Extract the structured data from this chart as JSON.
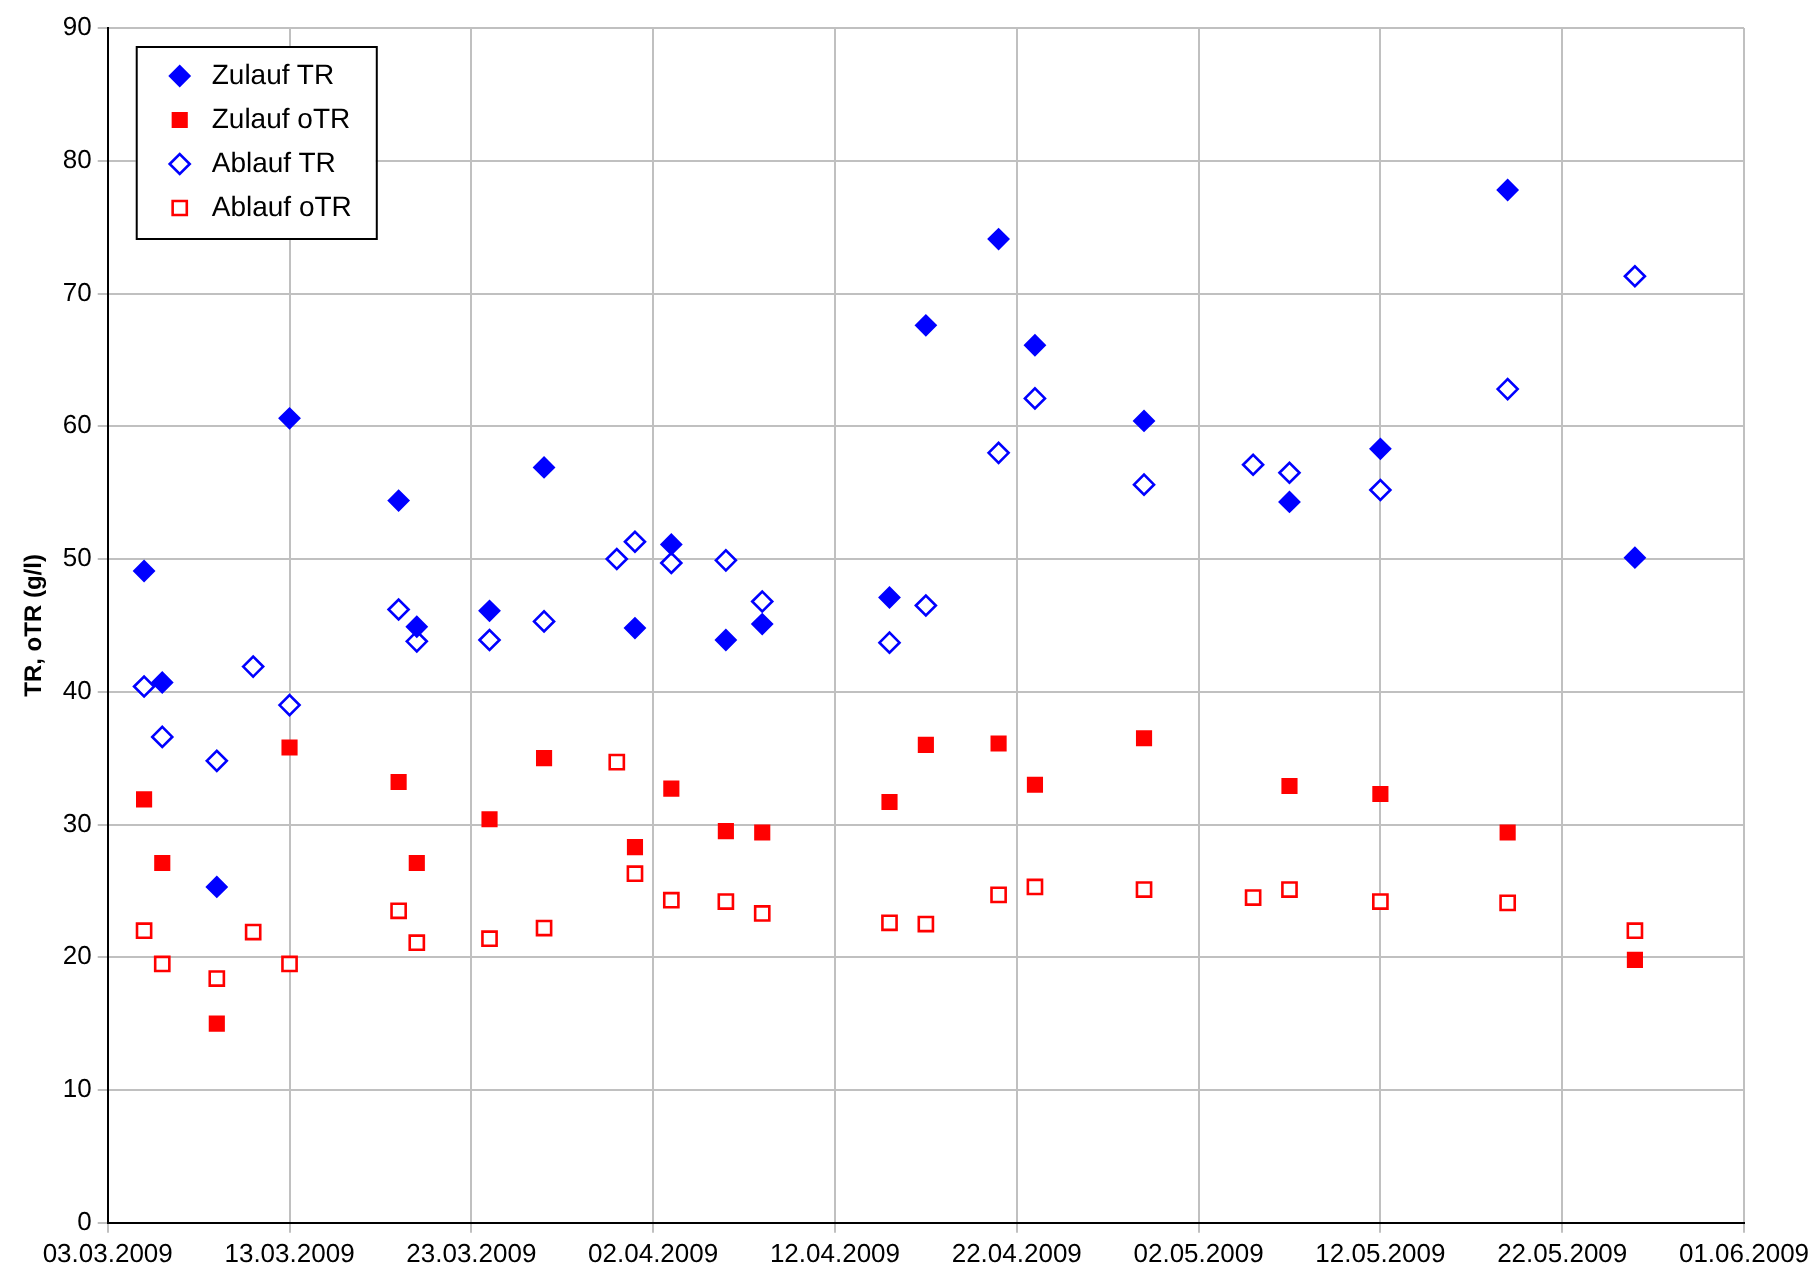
{
  "chart_data": {
    "type": "scatter",
    "ylabel": "TR, oTR (g/l)",
    "xlim": [
      "2009-03-03",
      "2009-06-01"
    ],
    "xticks": [
      {
        "value": "2009-03-03",
        "label": "03.03.2009"
      },
      {
        "value": "2009-03-13",
        "label": "13.03.2009"
      },
      {
        "value": "2009-03-23",
        "label": "23.03.2009"
      },
      {
        "value": "2009-04-02",
        "label": "02.04.2009"
      },
      {
        "value": "2009-04-12",
        "label": "12.04.2009"
      },
      {
        "value": "2009-04-22",
        "label": "22.04.2009"
      },
      {
        "value": "2009-05-02",
        "label": "02.05.2009"
      },
      {
        "value": "2009-05-12",
        "label": "12.05.2009"
      },
      {
        "value": "2009-05-22",
        "label": "22.05.2009"
      },
      {
        "value": "2009-06-01",
        "label": "01.06.2009"
      }
    ],
    "ylim": [
      0,
      90
    ],
    "yticks": [
      0,
      10,
      20,
      30,
      40,
      50,
      60,
      70,
      80,
      90
    ],
    "grid": true,
    "legend": "top left",
    "series": [
      {
        "name": "Zulauf TR",
        "color": "#0000ff",
        "marker": "diamond",
        "x": [
          "2009-03-05",
          "2009-03-06",
          "2009-03-09",
          "2009-03-13",
          "2009-03-19",
          "2009-03-20",
          "2009-03-24",
          "2009-03-27",
          "2009-04-01",
          "2009-04-03",
          "2009-04-06",
          "2009-04-08",
          "2009-04-15",
          "2009-04-17",
          "2009-04-21",
          "2009-04-23",
          "2009-04-29",
          "2009-05-07",
          "2009-05-12",
          "2009-05-19",
          "2009-05-26"
        ],
        "values": [
          49.1,
          40.7,
          25.3,
          60.6,
          54.4,
          44.9,
          46.1,
          56.9,
          44.8,
          51.1,
          43.9,
          45.1,
          47.1,
          67.6,
          74.1,
          66.1,
          60.4,
          54.3,
          58.3,
          77.8,
          50.1
        ]
      },
      {
        "name": "Zulauf oTR",
        "color": "#ff0000",
        "marker": "square",
        "x": [
          "2009-03-05",
          "2009-03-06",
          "2009-03-09",
          "2009-03-13",
          "2009-03-19",
          "2009-03-20",
          "2009-03-24",
          "2009-03-27",
          "2009-04-01",
          "2009-04-03",
          "2009-04-06",
          "2009-04-08",
          "2009-04-15",
          "2009-04-17",
          "2009-04-21",
          "2009-04-23",
          "2009-04-29",
          "2009-05-07",
          "2009-05-12",
          "2009-05-19",
          "2009-05-26"
        ],
        "values": [
          31.9,
          27.1,
          15.0,
          35.8,
          33.2,
          27.1,
          30.4,
          35.0,
          28.3,
          32.7,
          29.5,
          29.4,
          31.7,
          36.0,
          36.1,
          33.0,
          36.5,
          32.9,
          32.3,
          29.4,
          19.8
        ]
      },
      {
        "name": "Ablauf TR",
        "color": "#0000ff",
        "marker": "diamond",
        "x": [
          "2009-03-05",
          "2009-03-06",
          "2009-03-09",
          "2009-03-11",
          "2009-03-13",
          "2009-03-19",
          "2009-03-20",
          "2009-03-24",
          "2009-03-27",
          "2009-03-31",
          "2009-04-01",
          "2009-04-03",
          "2009-04-06",
          "2009-04-08",
          "2009-04-15",
          "2009-04-17",
          "2009-04-21",
          "2009-04-23",
          "2009-04-29",
          "2009-05-05",
          "2009-05-07",
          "2009-05-12",
          "2009-05-19",
          "2009-05-26"
        ],
        "values": [
          40.4,
          36.6,
          34.8,
          41.9,
          39.0,
          46.2,
          43.8,
          43.9,
          45.3,
          50.0,
          51.3,
          49.7,
          49.9,
          46.8,
          43.7,
          46.5,
          58.0,
          62.1,
          55.6,
          57.1,
          56.5,
          55.2,
          62.8,
          71.3
        ]
      },
      {
        "name": "Ablauf oTR",
        "color": "#ff0000",
        "marker": "square",
        "x": [
          "2009-03-05",
          "2009-03-06",
          "2009-03-09",
          "2009-03-11",
          "2009-03-13",
          "2009-03-19",
          "2009-03-20",
          "2009-03-24",
          "2009-03-27",
          "2009-03-31",
          "2009-04-01",
          "2009-04-03",
          "2009-04-06",
          "2009-04-08",
          "2009-04-15",
          "2009-04-17",
          "2009-04-21",
          "2009-04-23",
          "2009-04-29",
          "2009-05-05",
          "2009-05-07",
          "2009-05-12",
          "2009-05-19",
          "2009-05-26"
        ],
        "values": [
          22.0,
          19.5,
          18.4,
          21.9,
          19.5,
          23.5,
          21.1,
          21.4,
          22.2,
          34.7,
          26.3,
          24.3,
          24.2,
          23.3,
          22.6,
          22.5,
          24.7,
          25.3,
          25.1,
          24.5,
          25.1,
          24.2,
          24.1,
          22.0
        ]
      }
    ]
  }
}
